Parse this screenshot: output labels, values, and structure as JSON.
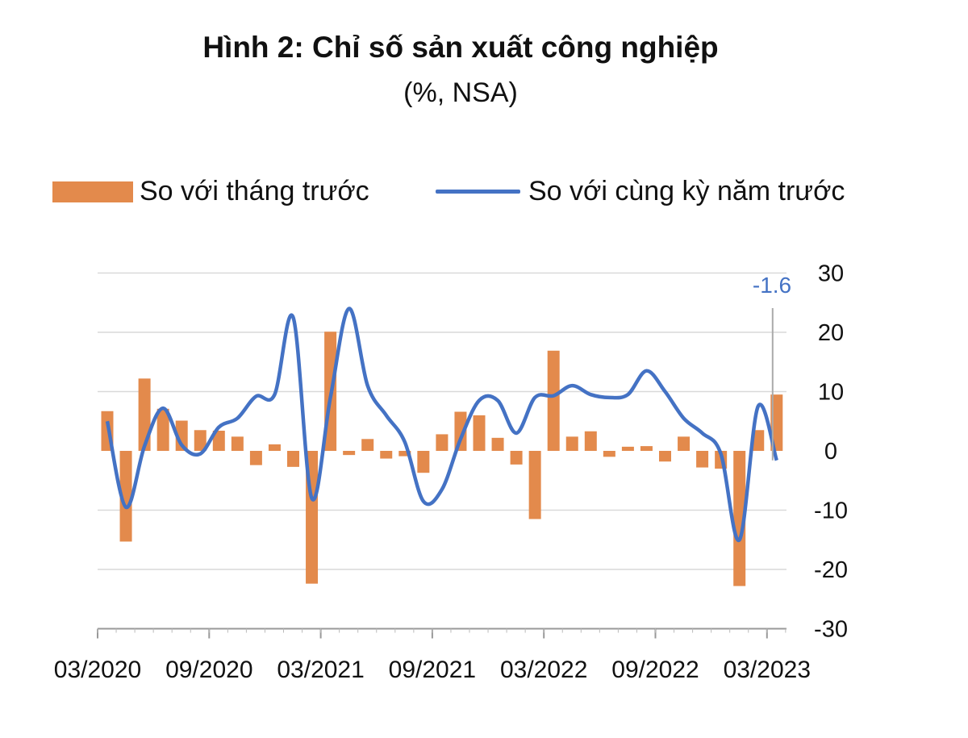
{
  "chart_data": {
    "type": "bar+line",
    "title": "Hình 2: Chỉ số sản xuất công nghiệp",
    "subtitle": "(%, NSA)",
    "legend": [
      {
        "name": "So với tháng trước",
        "kind": "bar",
        "color": "#E38A4C"
      },
      {
        "name": "So với cùng kỳ năm trước",
        "kind": "line",
        "color": "#4472C4"
      }
    ],
    "x_tick_labels": [
      "03/2020",
      "09/2020",
      "03/2021",
      "09/2021",
      "03/2022",
      "09/2022",
      "03/2023"
    ],
    "y_tick_labels": [
      "30",
      "20",
      "10",
      "0",
      "-10",
      "-20",
      "-30"
    ],
    "ylim": [
      -30,
      30
    ],
    "y_axis_side": "right",
    "grid": true,
    "annotation": "-1.6",
    "series": [
      {
        "name": "So với tháng trước",
        "type": "bar",
        "months": [
          "03/2020",
          "04/2020",
          "05/2020",
          "06/2020",
          "07/2020",
          "08/2020",
          "09/2020",
          "10/2020",
          "11/2020",
          "12/2020",
          "01/2021",
          "02/2021",
          "03/2021",
          "04/2021",
          "05/2021",
          "06/2021",
          "07/2021",
          "08/2021",
          "09/2021",
          "10/2021",
          "11/2021",
          "12/2021",
          "01/2022",
          "02/2022",
          "03/2022",
          "04/2022",
          "05/2022",
          "06/2022",
          "07/2022",
          "08/2022",
          "09/2022",
          "10/2022",
          "11/2022",
          "12/2022",
          "01/2023",
          "02/2023",
          "03/2023"
        ],
        "values": [
          6.7,
          -15.3,
          12.2,
          7.1,
          5.1,
          3.5,
          3.4,
          2.4,
          -2.4,
          1.1,
          -2.7,
          -22.4,
          20.1,
          -0.7,
          2.0,
          -1.3,
          -0.9,
          -3.7,
          2.8,
          6.6,
          6.0,
          2.2,
          -2.3,
          -11.5,
          16.9,
          2.4,
          3.3,
          -1.0,
          0.7,
          0.8,
          -1.8,
          2.4,
          -2.8,
          -3.0,
          -22.8,
          3.5,
          9.5
        ]
      },
      {
        "name": "So với cùng kỳ năm trước",
        "type": "line",
        "months": [
          "03/2020",
          "04/2020",
          "05/2020",
          "06/2020",
          "07/2020",
          "08/2020",
          "09/2020",
          "10/2020",
          "11/2020",
          "12/2020",
          "01/2021",
          "02/2021",
          "03/2021",
          "04/2021",
          "05/2021",
          "06/2021",
          "07/2021",
          "08/2021",
          "09/2021",
          "10/2021",
          "11/2021",
          "12/2021",
          "01/2022",
          "02/2022",
          "03/2022",
          "04/2022",
          "05/2022",
          "06/2022",
          "07/2022",
          "08/2022",
          "09/2022",
          "10/2022",
          "11/2022",
          "12/2022",
          "01/2023",
          "02/2023",
          "03/2023"
        ],
        "values": [
          5.0,
          -9.5,
          0.8,
          7.2,
          1.0,
          -0.5,
          4.0,
          5.5,
          9.2,
          9.5,
          22.5,
          -8.0,
          9.0,
          24.0,
          11.0,
          6.0,
          1.5,
          -8.5,
          -6.5,
          2.0,
          8.5,
          8.5,
          3.0,
          9.0,
          9.3,
          11.0,
          9.5,
          9.0,
          9.5,
          13.5,
          10.0,
          5.5,
          3.0,
          -0.5,
          -15.0,
          7.5,
          -1.6
        ]
      }
    ]
  }
}
